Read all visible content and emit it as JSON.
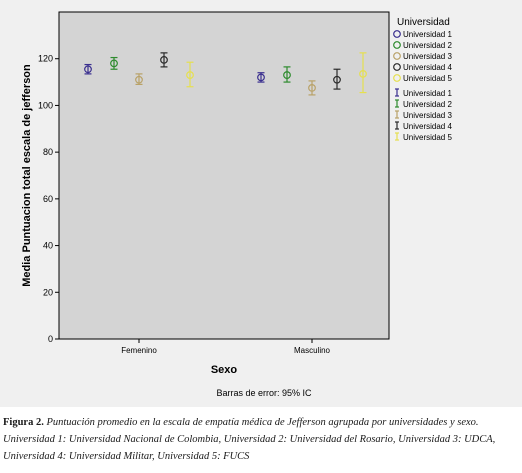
{
  "chart_data": {
    "type": "errorbar",
    "xlabel": "Sexo",
    "ylabel": "Media Puntuacion total escala de jefferson",
    "categories": [
      "Femenino",
      "Masculino"
    ],
    "ylim": [
      0,
      140
    ],
    "yticks": [
      0,
      20,
      40,
      60,
      80,
      100,
      120
    ],
    "grid": false,
    "legend_title": "Universidad",
    "legend_position": "right",
    "footnote": "Barras de error: 95% IC",
    "series": [
      {
        "name": "Universidad 1",
        "color": "#3a2f8f",
        "mean": [
          115.5,
          112.0
        ],
        "lower": [
          113.5,
          110.0
        ],
        "upper": [
          117.5,
          114.0
        ]
      },
      {
        "name": "Universidad 2",
        "color": "#2e8b2e",
        "mean": [
          118.0,
          113.0
        ],
        "lower": [
          115.5,
          110.0
        ],
        "upper": [
          120.5,
          116.5
        ]
      },
      {
        "name": "Universidad 3",
        "color": "#b9a268",
        "mean": [
          111.0,
          107.5
        ],
        "lower": [
          109.0,
          104.5
        ],
        "upper": [
          113.5,
          110.5
        ]
      },
      {
        "name": "Universidad 4",
        "color": "#2a2a2a",
        "mean": [
          119.5,
          111.0
        ],
        "lower": [
          116.5,
          107.0
        ],
        "upper": [
          122.5,
          115.5
        ]
      },
      {
        "name": "Universidad 5",
        "color": "#e6e04f",
        "mean": [
          113.0,
          113.5
        ],
        "lower": [
          108.0,
          105.5
        ],
        "upper": [
          118.5,
          122.5
        ]
      }
    ]
  },
  "caption": {
    "label": "Figura 2.",
    "text": "Puntuación promedio en la escala de empatía médica de Jefferson agrupada por universidades y sexo. Universidad 1: Universidad Nacional de Colombia, Universidad 2: Universidad del Rosario, Universidad 3: UDCA, Universidad 4: Universidad Militar, Universidad 5: FUCS"
  }
}
